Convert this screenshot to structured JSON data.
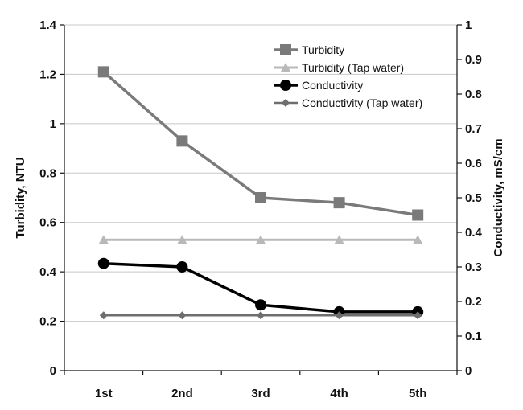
{
  "chart_data": {
    "type": "line",
    "categories": [
      "1st",
      "2nd",
      "3rd",
      "4th",
      "5th"
    ],
    "y_left": {
      "label": "Turbidity, NTU",
      "ylim": [
        0,
        1.4
      ],
      "ticks": [
        "0",
        "0.2",
        "0.4",
        "0.6",
        "0.8",
        "1",
        "1.2",
        "1.4"
      ]
    },
    "y_right": {
      "label": "Conductivity, mS/cm",
      "ylim": [
        0,
        1
      ],
      "ticks": [
        "0",
        "0.1",
        "0.2",
        "0.3",
        "0.4",
        "0.5",
        "0.6",
        "0.7",
        "0.8",
        "0.9",
        "1"
      ]
    },
    "grid": true,
    "legend_position": "top-right",
    "series": [
      {
        "name": "Turbidity",
        "axis": "left",
        "color": "#7a7a7a",
        "marker": "square",
        "values": [
          1.21,
          0.93,
          0.7,
          0.68,
          0.63
        ]
      },
      {
        "name": "Turbidity (Tap water)",
        "axis": "left",
        "color": "#b9b9b9",
        "marker": "triangle",
        "values": [
          0.53,
          0.53,
          0.53,
          0.53,
          0.53
        ]
      },
      {
        "name": "Conductivity",
        "axis": "right",
        "color": "#000000",
        "marker": "circle",
        "values": [
          0.31,
          0.3,
          0.19,
          0.17,
          0.17
        ]
      },
      {
        "name": "Conductivity (Tap water)",
        "axis": "right",
        "color": "#6e6e6e",
        "marker": "diamond",
        "values": [
          0.16,
          0.16,
          0.16,
          0.16,
          0.16
        ]
      }
    ]
  }
}
